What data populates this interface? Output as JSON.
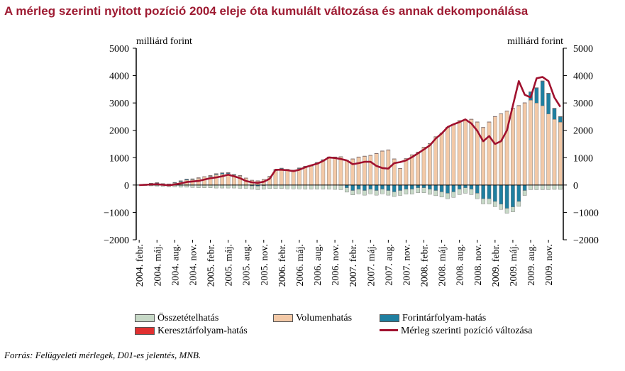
{
  "header": {
    "title": "A mérleg szerinti nyitott pozíció 2004 eleje óta kumulált változása és annak dekomponálása",
    "source": "Forrás: Felügyeleti mérlegek, D01-es jelentés, MNB."
  },
  "colors": {
    "title": "#9e1b32",
    "osszetetel": "#c7d9c7",
    "volumen": "#f3c9a7",
    "forint": "#1f7fa0",
    "kereszt": "#e03030",
    "line": "#a0112e"
  },
  "chart_data": {
    "type": "bar",
    "ylabel_left": "milliárd forint",
    "ylabel_right": "milliárd forint",
    "ylim": [
      -2000,
      5000
    ],
    "yticks": [
      -2000,
      -1000,
      0,
      1000,
      2000,
      3000,
      4000,
      5000
    ],
    "ytick_labels": [
      "−2000",
      "−1000",
      "0",
      "1000",
      "2000",
      "3000",
      "4000",
      "5000"
    ],
    "x_tick_labels": [
      "2004. febr.",
      "2004. máj.",
      "2004. aug.",
      "2004. nov.",
      "2005. febr.",
      "2005. máj.",
      "2005. aug.",
      "2005. nov.",
      "2006. febr.",
      "2006. máj.",
      "2006. aug.",
      "2006. nov.",
      "2007. febr.",
      "2007. máj.",
      "2007. aug.",
      "2007. nov.",
      "2008. febr.",
      "2008. máj.",
      "2008. aug.",
      "2008. nov.",
      "2009. febr.",
      "2009. máj.",
      "2009. aug.",
      "2009. nov."
    ],
    "months": 72,
    "start_month": "2004. febr.",
    "series": [
      {
        "name": "Összetételhatás",
        "values": [
          0,
          -20,
          -30,
          -40,
          -50,
          -60,
          -70,
          -80,
          -80,
          -90,
          -100,
          -100,
          -100,
          -110,
          -110,
          -110,
          -110,
          -120,
          -120,
          -120,
          -130,
          -130,
          -130,
          -130,
          -130,
          -140,
          -140,
          -140,
          -150,
          -150,
          -150,
          -150,
          -150,
          -160,
          -160,
          -160,
          -160,
          -170,
          -170,
          -170,
          -170,
          -170,
          -170,
          -170,
          -180,
          -180,
          -180,
          -180,
          -180,
          -190,
          -190,
          -190,
          -200,
          -200,
          -200,
          -200,
          -200,
          -200,
          -190,
          -190,
          -190,
          -190,
          -180,
          -180,
          -180,
          -180,
          -170,
          -170,
          -170,
          -170,
          -160,
          -160
        ]
      },
      {
        "name": "Volumenhatás",
        "values": [
          0,
          20,
          40,
          60,
          40,
          30,
          70,
          120,
          180,
          200,
          250,
          300,
          320,
          380,
          400,
          420,
          360,
          330,
          250,
          170,
          150,
          200,
          300,
          520,
          580,
          560,
          540,
          600,
          650,
          690,
          790,
          880,
          990,
          1000,
          1030,
          900,
          950,
          1020,
          1050,
          1080,
          1150,
          1240,
          1280,
          950,
          600,
          960,
          1100,
          1200,
          1380,
          1510,
          1760,
          1900,
          2100,
          2200,
          2350,
          2380,
          2400,
          2300,
          2100,
          2300,
          2500,
          2600,
          2700,
          2800,
          2900,
          3000,
          3100,
          3000,
          2900,
          2600,
          2400,
          2300
        ]
      },
      {
        "name": "Forintárfolyam-hatás",
        "values": [
          0,
          10,
          20,
          20,
          10,
          10,
          20,
          30,
          30,
          20,
          10,
          0,
          20,
          30,
          40,
          30,
          20,
          10,
          0,
          -30,
          -40,
          -20,
          10,
          40,
          30,
          10,
          0,
          20,
          30,
          20,
          30,
          40,
          30,
          20,
          -10,
          -100,
          -200,
          -150,
          -200,
          -150,
          -200,
          -150,
          -200,
          -250,
          -200,
          -150,
          -150,
          -100,
          -100,
          -150,
          -200,
          -250,
          -300,
          -250,
          -150,
          -100,
          -150,
          -300,
          -500,
          -500,
          -600,
          -700,
          -850,
          -800,
          -600,
          -200,
          300,
          550,
          900,
          750,
          400,
          200
        ]
      },
      {
        "name": "Keresztárfolyam-hatás",
        "values": [
          0,
          5,
          10,
          10,
          5,
          5,
          10,
          10,
          10,
          10,
          10,
          10,
          10,
          10,
          10,
          10,
          10,
          10,
          10,
          10,
          10,
          10,
          10,
          10,
          10,
          10,
          10,
          10,
          10,
          10,
          10,
          10,
          10,
          10,
          10,
          10,
          10,
          10,
          10,
          10,
          10,
          10,
          10,
          10,
          10,
          10,
          10,
          10,
          10,
          10,
          10,
          10,
          10,
          10,
          10,
          10,
          10,
          10,
          10,
          10,
          10,
          10,
          10,
          10,
          10,
          10,
          10,
          10,
          10,
          10,
          10,
          10
        ]
      },
      {
        "name": "Mérleg szerinti pozíció változása",
        "values": [
          0,
          10,
          20,
          30,
          10,
          -10,
          20,
          60,
          110,
          130,
          150,
          200,
          250,
          280,
          320,
          380,
          320,
          250,
          150,
          100,
          80,
          120,
          230,
          560,
          560,
          540,
          510,
          560,
          650,
          720,
          780,
          880,
          1010,
          990,
          950,
          900,
          760,
          800,
          850,
          850,
          700,
          620,
          600,
          800,
          840,
          900,
          1020,
          1160,
          1300,
          1450,
          1700,
          1880,
          2120,
          2220,
          2300,
          2400,
          2250,
          1980,
          1600,
          1790,
          1500,
          1600,
          2000,
          2900,
          3800,
          3300,
          3200,
          3900,
          3950,
          3800,
          3200,
          2860
        ]
      }
    ]
  },
  "legend": {
    "osszetetel": "Összetételhatás",
    "volumen": "Volumenhatás",
    "forint": "Forintárfolyam-hatás",
    "kereszt": "Keresztárfolyam-hatás",
    "line": "Mérleg szerinti pozíció változása"
  }
}
